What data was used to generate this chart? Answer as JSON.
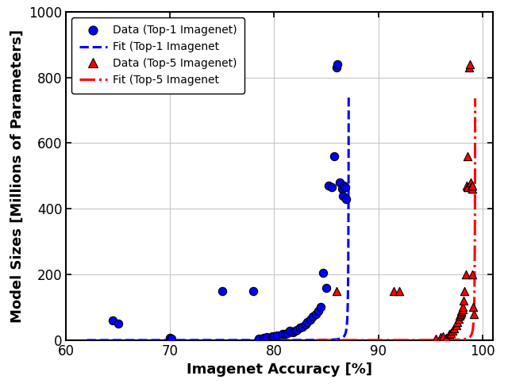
{
  "top1_x": [
    64.5,
    65.0,
    70.0,
    70.1,
    75.0,
    78.0,
    78.5,
    79.0,
    79.3,
    79.8,
    80.0,
    80.3,
    80.8,
    81.0,
    81.3,
    81.5,
    81.8,
    82.0,
    82.2,
    82.5,
    82.7,
    83.0,
    83.2,
    83.5,
    83.7,
    84.0,
    84.2,
    84.5,
    84.7,
    85.0,
    85.2,
    85.5,
    85.8,
    86.0,
    86.1,
    86.3,
    86.5,
    86.6,
    86.7,
    86.8,
    86.9
  ],
  "top1_y": [
    60,
    50,
    6,
    5,
    150,
    150,
    5,
    8,
    10,
    12,
    12,
    15,
    18,
    20,
    22,
    28,
    25,
    28,
    32,
    38,
    42,
    48,
    55,
    62,
    72,
    80,
    90,
    100,
    205,
    160,
    470,
    465,
    560,
    830,
    840,
    480,
    460,
    440,
    470,
    465,
    430
  ],
  "top5_x": [
    86.0,
    91.5,
    92.0,
    95.5,
    96.0,
    96.2,
    96.5,
    96.8,
    97.0,
    97.1,
    97.3,
    97.5,
    97.6,
    97.7,
    97.8,
    97.9,
    98.0,
    98.0,
    98.1,
    98.15,
    98.2,
    98.3,
    98.4,
    98.5,
    98.55,
    98.6,
    98.7,
    98.8,
    98.85,
    98.9,
    99.0,
    99.0,
    99.05,
    99.1,
    99.15
  ],
  "top5_y": [
    150,
    150,
    150,
    5,
    10,
    12,
    8,
    18,
    22,
    28,
    35,
    45,
    55,
    65,
    75,
    80,
    85,
    90,
    95,
    100,
    120,
    150,
    200,
    470,
    465,
    560,
    830,
    840,
    480,
    465,
    460,
    470,
    200,
    100,
    80
  ],
  "fit1_asymptote": 87.2,
  "fit1_x_start": 62.0,
  "fit1_scale": 3.5,
  "fit1_power": 1.7,
  "fit5_asymptote": 99.35,
  "fit5_x_start": 84.0,
  "fit5_scale": 3.5,
  "fit5_power": 1.7,
  "xlim": [
    60,
    101
  ],
  "ylim": [
    0,
    1000
  ],
  "xticks": [
    60,
    70,
    80,
    90,
    100
  ],
  "yticks": [
    0,
    200,
    400,
    600,
    800,
    1000
  ],
  "xlabel": "Imagenet Accuracy [%]",
  "ylabel": "Model Sizes [Millions of Parameters]",
  "blue_color": "#0000FF",
  "red_color": "#FF0000",
  "background_color": "#FFFFFF",
  "grid_color": "#C0C0C0",
  "legend_labels": [
    "Data (Top-1 Imagenet)",
    "Fit (Top-1 Imagenet",
    "Data (Top-5 Imagenet)",
    "Fit (Top-5 Imagenet"
  ]
}
